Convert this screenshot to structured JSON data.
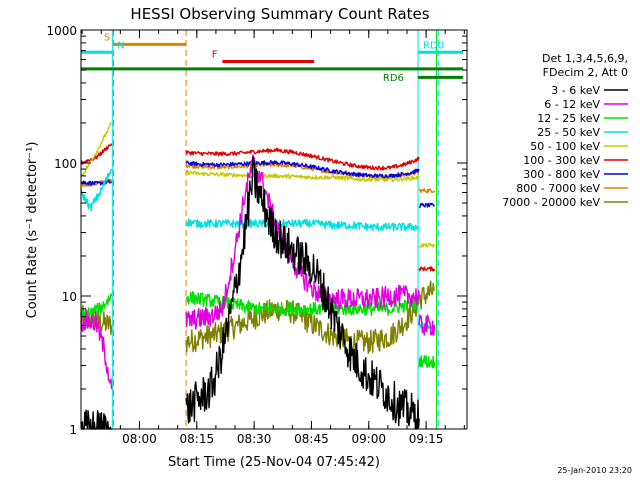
{
  "chart_data": {
    "type": "line",
    "title": "HESSI Observing Summary Count Rates",
    "xlabel": "Start Time (25-Nov-04 07:45:42)",
    "ylabel": "Count Rate (s⁻¹ detector⁻¹)",
    "yscale": "log",
    "ylim": [
      1,
      1000
    ],
    "xlim": [
      -1,
      100
    ],
    "x_units": "minutes after 07:45:42",
    "x_ticks": [
      {
        "t": 14.3,
        "label": "08:00"
      },
      {
        "t": 29.3,
        "label": "08:15"
      },
      {
        "t": 44.3,
        "label": "08:30"
      },
      {
        "t": 59.3,
        "label": "08:45"
      },
      {
        "t": 74.3,
        "label": "09:00"
      },
      {
        "t": 89.3,
        "label": "09:15"
      }
    ],
    "y_ticks": [
      {
        "v": 1,
        "label": "1"
      },
      {
        "v": 10,
        "label": "10"
      },
      {
        "v": 100,
        "label": "100"
      },
      {
        "v": 1000,
        "label": "1000"
      }
    ],
    "legend_position": "right",
    "legend_header": [
      "Det 1,3,4,5,6,9,",
      "FDecim 2, Att 0"
    ],
    "series": [
      {
        "name": "3 - 6 keV",
        "color": "#000000",
        "noise": 0.15,
        "segments": [
          {
            "x": [
              -1,
              7
            ],
            "y": [
              1,
              1
            ]
          },
          {
            "x": [
              26.5,
              33,
              35,
              38,
              41,
              44,
              46,
              49,
              52,
              56,
              60,
              63,
              66,
              70,
              74,
              78,
              82,
              86,
              87.5
            ],
            "y": [
              1.4,
              2,
              3,
              7,
              20,
              80,
              55,
              33,
              25,
              20,
              16,
              10,
              6,
              3.5,
              2.5,
              2,
              1.5,
              1.3,
              1.2
            ]
          }
        ]
      },
      {
        "name": "6 - 12 keV",
        "color": "#e000e0",
        "noise": 0.08,
        "segments": [
          {
            "x": [
              -1,
              3,
              5,
              7
            ],
            "y": [
              6.5,
              6.3,
              4,
              2
            ]
          },
          {
            "x": [
              26.5,
              33,
              36,
              39,
              42,
              44,
              46,
              49,
              52,
              56,
              60,
              64,
              68,
              72,
              76,
              80,
              84,
              87.5
            ],
            "y": [
              6.5,
              7,
              8,
              20,
              60,
              100,
              80,
              42,
              25,
              15,
              11,
              9.5,
              9.5,
              9.5,
              9.5,
              10,
              10,
              10
            ]
          },
          {
            "x": [
              87.5,
              91.5
            ],
            "y": [
              6,
              6
            ]
          }
        ]
      },
      {
        "name": "12 - 25 keV",
        "color": "#00e000",
        "noise": 0.05,
        "segments": [
          {
            "x": [
              -1,
              4,
              7
            ],
            "y": [
              7,
              8,
              10
            ]
          },
          {
            "x": [
              26.5,
              30,
              35,
              40,
              45,
              50,
              55,
              60,
              65,
              70,
              75,
              80,
              84,
              87.5
            ],
            "y": [
              9.8,
              9.5,
              9,
              8.5,
              8,
              8,
              8,
              8,
              8,
              8,
              8,
              8,
              8.5,
              9
            ]
          },
          {
            "x": [
              87.5,
              90,
              91.5
            ],
            "y": [
              3.3,
              3.2,
              3.2
            ]
          }
        ]
      },
      {
        "name": "25 - 50 keV",
        "color": "#00e0e0",
        "noise": 0.03,
        "segments": [
          {
            "x": [
              -1,
              1.5,
              4,
              7
            ],
            "y": [
              60,
              46,
              60,
              90
            ]
          },
          {
            "x": [
              26.5,
              30,
              35,
              40,
              45,
              50,
              55,
              60,
              65,
              70,
              75,
              80,
              84,
              87.5
            ],
            "y": [
              36,
              35,
              35,
              35,
              35,
              35,
              35,
              35,
              34,
              34,
              33,
              33,
              33,
              33
            ]
          },
          {
            "x": [
              87.5,
              90,
              91.5
            ],
            "y": [
              6,
              5.8,
              5.8
            ]
          }
        ]
      },
      {
        "name": "50 - 100 keV",
        "color": "#c8c800",
        "noise": 0.015,
        "segments": [
          {
            "x": [
              -1,
              3,
              7
            ],
            "y": [
              78,
              120,
              200
            ]
          },
          {
            "x": [
              26.5,
              30,
              35,
              40,
              45,
              50,
              55,
              60,
              65,
              70,
              75,
              80,
              84,
              87.5
            ],
            "y": [
              85,
              83,
              82,
              81,
              80,
              80,
              79,
              78,
              78,
              76,
              75,
              75,
              76,
              78
            ]
          },
          {
            "x": [
              87.5,
              90,
              91.5
            ],
            "y": [
              24,
              24,
              24
            ]
          }
        ]
      },
      {
        "name": "100 - 300 keV",
        "color": "#e00000",
        "noise": 0.015,
        "segments": [
          {
            "x": [
              -1,
              3,
              7
            ],
            "y": [
              100,
              110,
              140
            ]
          },
          {
            "x": [
              26.5,
              30,
              35,
              40,
              45,
              50,
              55,
              60,
              65,
              70,
              75,
              80,
              84,
              87.5
            ],
            "y": [
              120,
              118,
              117,
              118,
              122,
              125,
              120,
              112,
              103,
              96,
              92,
              92,
              98,
              108
            ]
          },
          {
            "x": [
              87.5,
              90,
              91.5
            ],
            "y": [
              16,
              16,
              16
            ]
          }
        ]
      },
      {
        "name": "300 - 800 keV",
        "color": "#0000e0",
        "noise": 0.015,
        "segments": [
          {
            "x": [
              -1,
              3,
              7
            ],
            "y": [
              72,
              70,
              72
            ]
          },
          {
            "x": [
              26.5,
              30,
              35,
              40,
              45,
              50,
              55,
              60,
              65,
              70,
              75,
              80,
              84,
              87.5
            ],
            "y": [
              100,
              98,
              97,
              98,
              100,
              101,
              98,
              93,
              87,
              83,
              80,
              80,
              83,
              88
            ]
          },
          {
            "x": [
              87.5,
              90,
              91.5
            ],
            "y": [
              48,
              48,
              48
            ]
          }
        ]
      },
      {
        "name": "800 - 7000 keV",
        "color": "#e08000",
        "noise": 0.015,
        "segments": [
          {
            "x": [
              -1,
              3,
              7
            ],
            "y": [
              68,
              70,
              75
            ]
          },
          {
            "x": [
              26.5,
              30,
              35,
              40,
              45,
              50,
              55,
              60,
              65,
              70,
              75,
              80,
              84,
              87.5
            ],
            "y": [
              96,
              94,
              93,
              94,
              96,
              97,
              95,
              90,
              85,
              82,
              80,
              79,
              82,
              85
            ]
          },
          {
            "x": [
              87.5,
              90,
              91.5
            ],
            "y": [
              62,
              62,
              62
            ]
          }
        ]
      },
      {
        "name": "7000 - 20000 keV",
        "color": "#808000",
        "noise": 0.09,
        "segments": [
          {
            "x": [
              -1,
              3,
              7
            ],
            "y": [
              7,
              6.5,
              6
            ]
          },
          {
            "x": [
              26.5,
              30,
              35,
              40,
              45,
              50,
              55,
              60,
              65,
              70,
              75,
              80,
              84,
              87.5
            ],
            "y": [
              4.5,
              4.8,
              5.2,
              6,
              7,
              8,
              7.5,
              6,
              5,
              4.5,
              4.5,
              5,
              6.5,
              9
            ]
          },
          {
            "x": [
              87.5,
              90,
              91.5
            ],
            "y": [
              9.5,
              10.5,
              11
            ]
          }
        ]
      }
    ],
    "dashed_lines": [
      {
        "t": 7.5,
        "color": "#e08000"
      },
      {
        "t": 26.5,
        "color": "#e08000"
      },
      {
        "t": 92.5,
        "color": "#00e0e0"
      }
    ],
    "solid_lines": [
      {
        "t": 7.2,
        "color": "#00e0e0"
      },
      {
        "t": 87.2,
        "color": "#00e0e0"
      },
      {
        "t": 92.0,
        "color": "#00e000"
      }
    ],
    "annotation_bars": [
      {
        "label": "S",
        "color": "#e08000",
        "x0": 7.5,
        "x1": 26.5,
        "level": 780,
        "label_x": 5.0
      },
      {
        "label": "N",
        "color": "#00e0e0",
        "x0": -1,
        "x1": 7.2,
        "level": 680,
        "label_x": 8.5
      },
      {
        "label": "F",
        "color": "#e00000",
        "x0": 36,
        "x1": 60,
        "level": 580,
        "label_x": 33.2
      },
      {
        "label": "RD0",
        "color": "#00e0e0",
        "x0": 87.2,
        "x1": 99,
        "level": 680,
        "label_x": 88.5
      },
      {
        "label": "RD6",
        "color": "#008000",
        "x0": -1,
        "x1": 99,
        "level": 510,
        "label_x": 78.0
      },
      {
        "label": "",
        "color": "#008000",
        "x0": 87.2,
        "x1": 99,
        "level": 440,
        "label_x": 0
      }
    ],
    "footer_date": "25-Jan-2010 23:20"
  }
}
